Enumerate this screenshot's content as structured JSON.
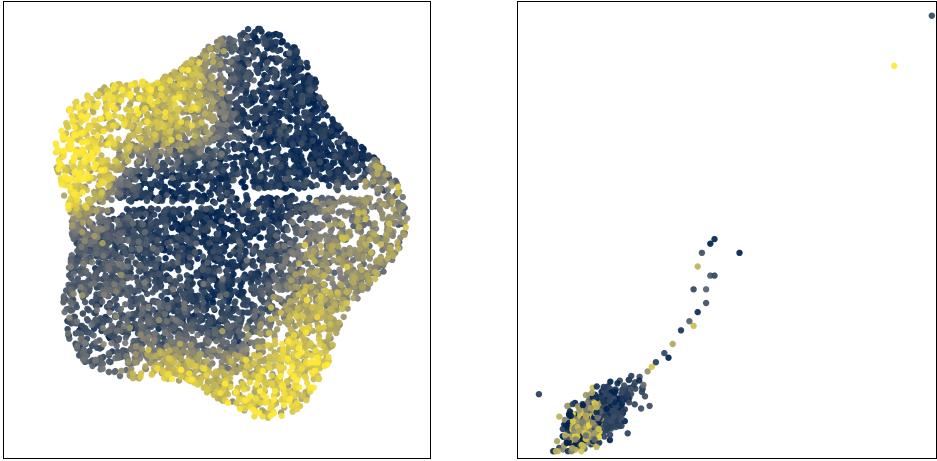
{
  "colors": {
    "cmap": "cividis",
    "low": "#00224e",
    "mid": "#7c7b78",
    "high": "#fee838",
    "frame": "#000000",
    "background": "#ffffff"
  },
  "chart_data": [
    {
      "type": "scatter",
      "title": "",
      "xlabel": "",
      "ylabel": "",
      "xlim": [
        -1.05,
        1.05
      ],
      "ylim": [
        -1.05,
        1.05
      ],
      "axes_ticks": false,
      "grid": false,
      "legend": "none",
      "colormap": "cividis",
      "color_value_range": [
        0,
        1
      ],
      "cloud": {
        "shape": "disc",
        "center": [
          0.02,
          0.02
        ],
        "radius": [
          0.92,
          0.93
        ],
        "points": 6500
      },
      "gaps": [
        {
          "x": [
            -0.62,
            0.02
          ],
          "y": [
            0.1,
            0.13
          ]
        },
        {
          "x": [
            0.08,
            0.78
          ],
          "y": [
            0.15,
            0.19
          ]
        }
      ],
      "color_regions": [
        {
          "x": -0.8,
          "y": 0.3,
          "value": 0.97,
          "spread": 0.16
        },
        {
          "x": -0.62,
          "y": 0.68,
          "value": 0.92,
          "spread": 0.14
        },
        {
          "x": -0.3,
          "y": 0.72,
          "value": 0.72,
          "spread": 0.2
        },
        {
          "x": 0.3,
          "y": 0.68,
          "value": 0.04,
          "spread": 0.16
        },
        {
          "x": 0.52,
          "y": 0.48,
          "value": 0.0,
          "spread": 0.12
        },
        {
          "x": -0.22,
          "y": 0.06,
          "value": 0.02,
          "spread": 0.16
        },
        {
          "x": 0.15,
          "y": 0.1,
          "value": 0.05,
          "spread": 0.14
        },
        {
          "x": 0.05,
          "y": -0.3,
          "value": 0.1,
          "spread": 0.18
        },
        {
          "x": -0.55,
          "y": -0.25,
          "value": 0.28,
          "spread": 0.2
        },
        {
          "x": 0.4,
          "y": -0.6,
          "value": 0.9,
          "spread": 0.16
        },
        {
          "x": -0.15,
          "y": -0.82,
          "value": 0.86,
          "spread": 0.16
        },
        {
          "x": 0.6,
          "y": -0.25,
          "value": 0.55,
          "spread": 0.18
        }
      ]
    },
    {
      "type": "scatter",
      "title": "",
      "xlabel": "",
      "ylabel": "",
      "xlim": [
        0,
        1
      ],
      "ylim": [
        0,
        1
      ],
      "axes_ticks": false,
      "grid": false,
      "legend": "none",
      "colormap": "cividis",
      "color_value_range": [
        0,
        1
      ],
      "dense_cluster": {
        "center": [
          0.19,
          0.09
        ],
        "spread": [
          0.04,
          0.03
        ],
        "points": 700,
        "value_mix": [
          0.05,
          0.55,
          0.8
        ]
      },
      "tail_points": [
        {
          "x": 0.25,
          "y": 0.13,
          "value": 0.1
        },
        {
          "x": 0.27,
          "y": 0.15,
          "value": 0.3
        },
        {
          "x": 0.29,
          "y": 0.17,
          "value": 0.05
        },
        {
          "x": 0.31,
          "y": 0.19,
          "value": 0.6
        },
        {
          "x": 0.33,
          "y": 0.21,
          "value": 0.15
        },
        {
          "x": 0.35,
          "y": 0.23,
          "value": 0.2
        },
        {
          "x": 0.37,
          "y": 0.25,
          "value": 0.7
        },
        {
          "x": 0.39,
          "y": 0.28,
          "value": 0.1
        },
        {
          "x": 0.41,
          "y": 0.3,
          "value": 0.35
        },
        {
          "x": 0.43,
          "y": 0.32,
          "value": 0.05
        },
        {
          "x": 0.45,
          "y": 0.34,
          "value": 0.25
        },
        {
          "x": 0.42,
          "y": 0.29,
          "value": 0.8
        },
        {
          "x": 0.32,
          "y": 0.2,
          "value": 0.85
        },
        {
          "x": 0.36,
          "y": 0.22,
          "value": 0.0
        },
        {
          "x": 0.3,
          "y": 0.16,
          "value": 0.4
        }
      ],
      "outliers": [
        {
          "x": 0.05,
          "y": 0.14,
          "value": 0.15
        },
        {
          "x": 0.42,
          "y": 0.37,
          "value": 0.2
        },
        {
          "x": 0.46,
          "y": 0.4,
          "value": 0.3
        },
        {
          "x": 0.43,
          "y": 0.42,
          "value": 0.75
        },
        {
          "x": 0.44,
          "y": 0.45,
          "value": 0.25
        },
        {
          "x": 0.46,
          "y": 0.47,
          "value": 0.0
        },
        {
          "x": 0.47,
          "y": 0.4,
          "value": 0.2
        },
        {
          "x": 0.45,
          "y": 0.37,
          "value": 0.35
        },
        {
          "x": 0.47,
          "y": 0.48,
          "value": 0.02
        },
        {
          "x": 0.53,
          "y": 0.45,
          "value": 0.0
        },
        {
          "x": 0.9,
          "y": 0.86,
          "value": 1.0
        },
        {
          "x": 0.99,
          "y": 0.97,
          "value": 0.2
        }
      ]
    }
  ]
}
